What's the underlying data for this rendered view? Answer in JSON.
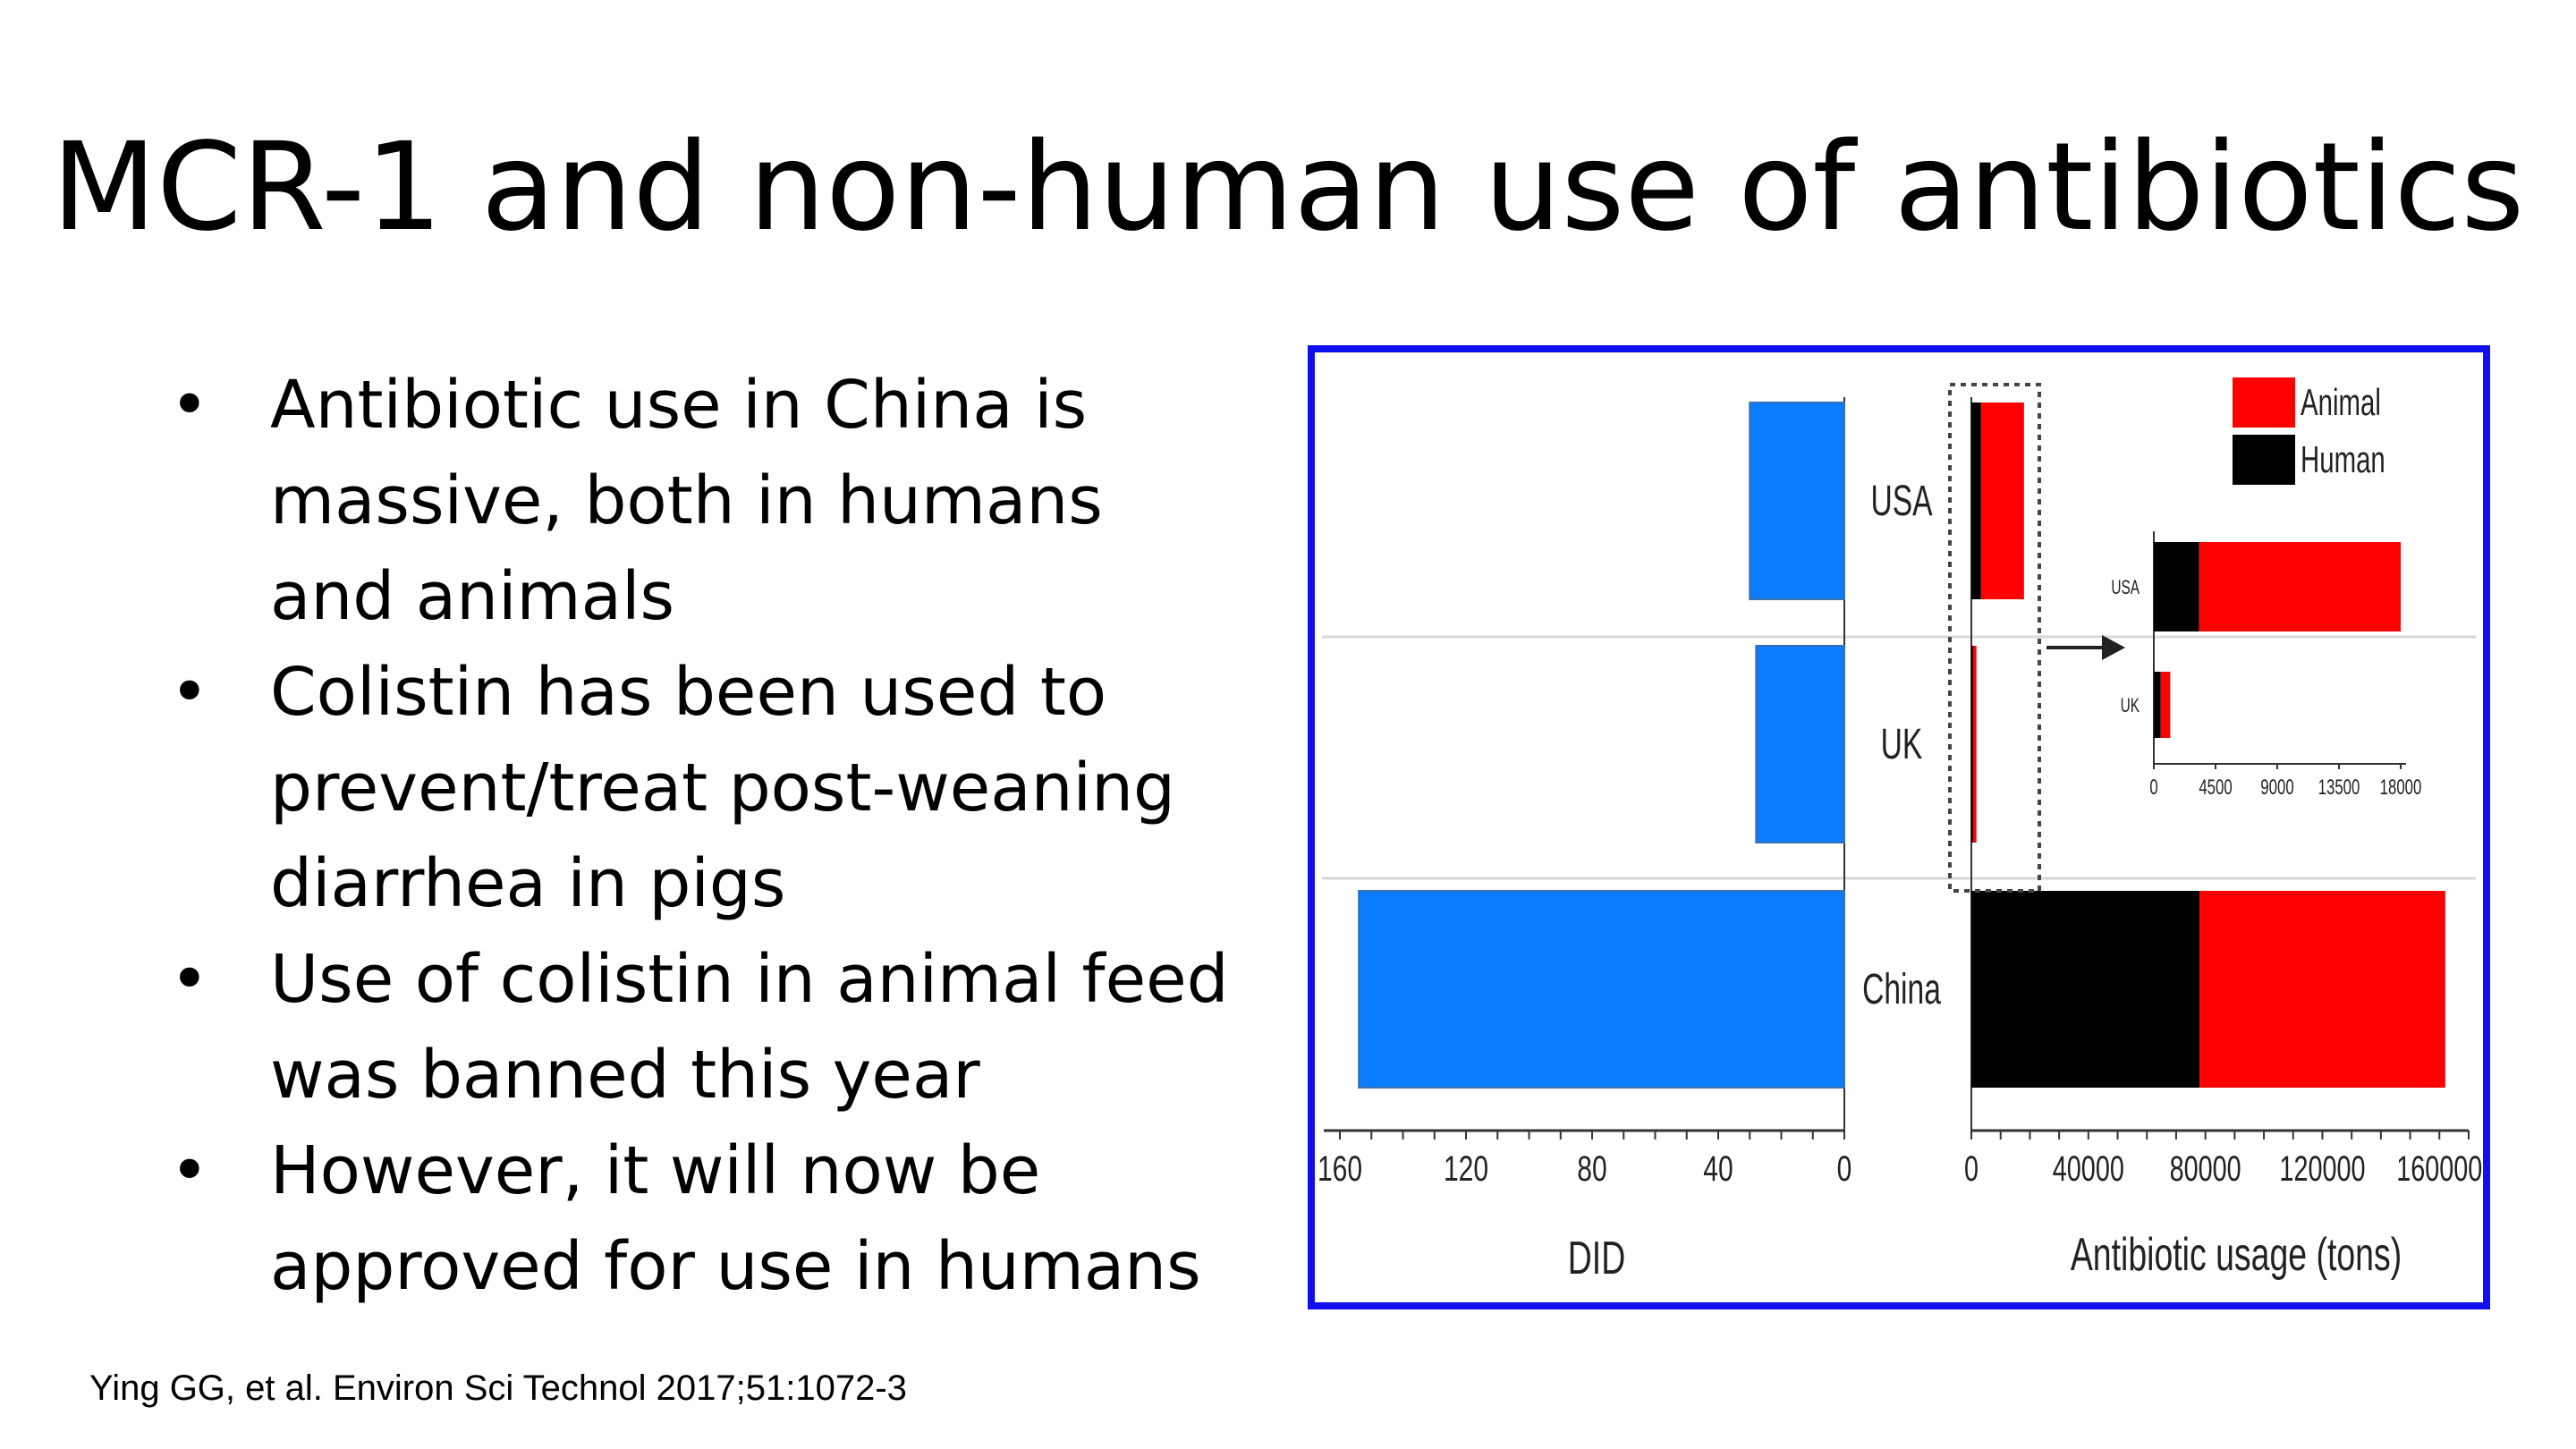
{
  "slide": {
    "title": "MCR-1 and non-human use of antibiotics",
    "bullet_symbol": "•",
    "bullets": [
      "Antibiotic use in China is massive, both in humans and animals",
      "Colistin has been used to prevent/treat post-weaning diarrhea in pigs",
      "Use of colistin in animal feed was banned this year",
      "However, it will now be approved for use in humans"
    ],
    "citation": "Ying GG, et al. Environ Sci Technol 2017;51:1072-3"
  },
  "chart_data": [
    {
      "type": "bar",
      "orientation": "horizontal",
      "direction": "reversed",
      "categories": [
        "USA",
        "UK",
        "China"
      ],
      "values": [
        30,
        28,
        154
      ],
      "xlabel": "DID",
      "ylabel": "",
      "xlim": [
        0,
        160
      ],
      "xticks": [
        "160",
        "120",
        "80",
        "40",
        "0"
      ],
      "color": "#0a7cff"
    },
    {
      "type": "bar",
      "orientation": "horizontal",
      "stacked": true,
      "categories": [
        "USA",
        "UK",
        "China"
      ],
      "series": [
        {
          "name": "Human",
          "color": "#000000",
          "values": [
            3300,
            500,
            78000
          ]
        },
        {
          "name": "Animal",
          "color": "#ff0000",
          "values": [
            14700,
            700,
            84000
          ]
        }
      ],
      "xlabel": "Antibiotic usage (tons)",
      "xlim": [
        0,
        170000
      ],
      "xticks": [
        "0",
        "40000",
        "80000",
        "120000",
        "160000"
      ],
      "legend": "top-right"
    },
    {
      "type": "bar",
      "orientation": "horizontal",
      "stacked": true,
      "inset": true,
      "categories": [
        "USA",
        "UK"
      ],
      "series": [
        {
          "name": "Human",
          "color": "#000000",
          "values": [
            3300,
            500
          ]
        },
        {
          "name": "Animal",
          "color": "#ff0000",
          "values": [
            14700,
            700
          ]
        }
      ],
      "xlim": [
        0,
        18000
      ],
      "xticks": [
        "0",
        "4500",
        "9000",
        "13500",
        "18000"
      ]
    }
  ]
}
